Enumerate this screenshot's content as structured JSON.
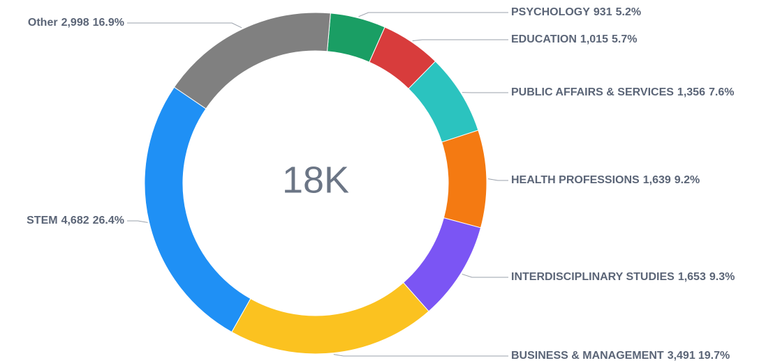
{
  "chart_data": {
    "type": "donut",
    "center_label": "18K",
    "categories": [
      "PSYCHOLOGY",
      "EDUCATION",
      "PUBLIC AFFAIRS & SERVICES",
      "HEALTH PROFESSIONS",
      "INTERDISCIPLINARY STUDIES",
      "BUSINESS & MANAGEMENT",
      "STEM",
      "Other"
    ],
    "values": [
      931,
      1015,
      1356,
      1639,
      1653,
      3491,
      4682,
      2998
    ],
    "value_labels": [
      "931",
      "1,015",
      "1,356",
      "1,639",
      "1,653",
      "3,491",
      "4,682",
      "2,998"
    ],
    "percent_labels": [
      "5.2%",
      "5.7%",
      "7.6%",
      "9.2%",
      "9.3%",
      "19.7%",
      "26.4%",
      "16.9%"
    ],
    "colors": [
      "#1a9e64",
      "#d83c3c",
      "#2bc3bf",
      "#f47a12",
      "#7b55f4",
      "#fbc220",
      "#1f90f5",
      "#808080"
    ]
  }
}
